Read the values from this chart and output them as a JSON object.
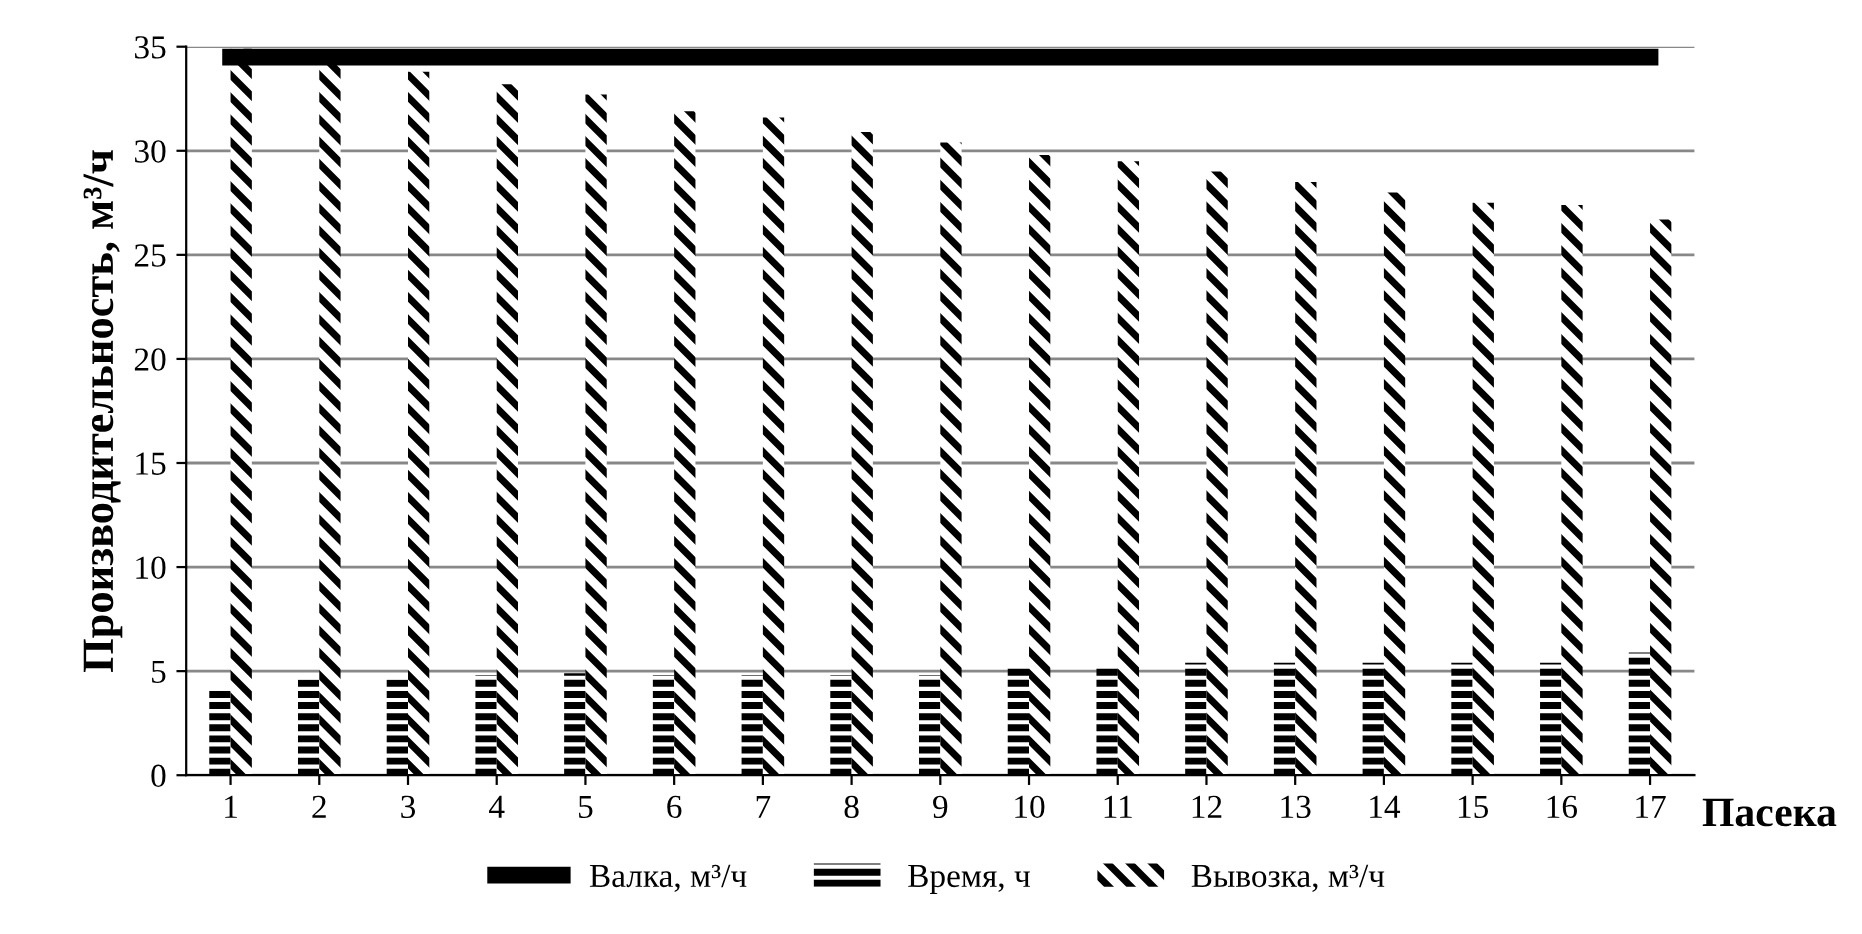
{
  "chart_data": {
    "type": "bar",
    "xlabel": "Пасека",
    "ylabel": "Производительность, м³/ч",
    "categories": [
      "1",
      "2",
      "3",
      "4",
      "5",
      "6",
      "7",
      "8",
      "9",
      "10",
      "11",
      "12",
      "13",
      "14",
      "15",
      "16",
      "17"
    ],
    "series": [
      {
        "name": "Валка, м³/ч",
        "type": "line",
        "color": "#000000",
        "values": [
          34.5,
          34.5,
          34.5,
          34.5,
          34.5,
          34.5,
          34.5,
          34.5,
          34.5,
          34.5,
          34.5,
          34.5,
          34.5,
          34.5,
          34.5,
          34.5,
          34.5
        ]
      },
      {
        "name": "Время, ч",
        "color": "#000000",
        "values": [
          4.2,
          4.6,
          4.6,
          4.8,
          4.9,
          4.8,
          4.8,
          4.8,
          4.8,
          5.3,
          5.3,
          5.4,
          5.4,
          5.4,
          5.4,
          5.4,
          5.9
        ]
      },
      {
        "name": "Вывозка, м³/ч",
        "color": "#000000",
        "values": [
          34.9,
          34.4,
          33.8,
          33.2,
          32.7,
          31.9,
          31.6,
          30.9,
          30.4,
          29.8,
          29.5,
          29.0,
          28.5,
          28.0,
          27.5,
          27.4,
          26.7
        ]
      }
    ],
    "ylim": [
      0,
      35
    ],
    "yticks": [
      0,
      5,
      10,
      15,
      20,
      25,
      30,
      35
    ],
    "grid": "y",
    "legend": "bottom",
    "line_style": "solid",
    "marker": "none"
  }
}
